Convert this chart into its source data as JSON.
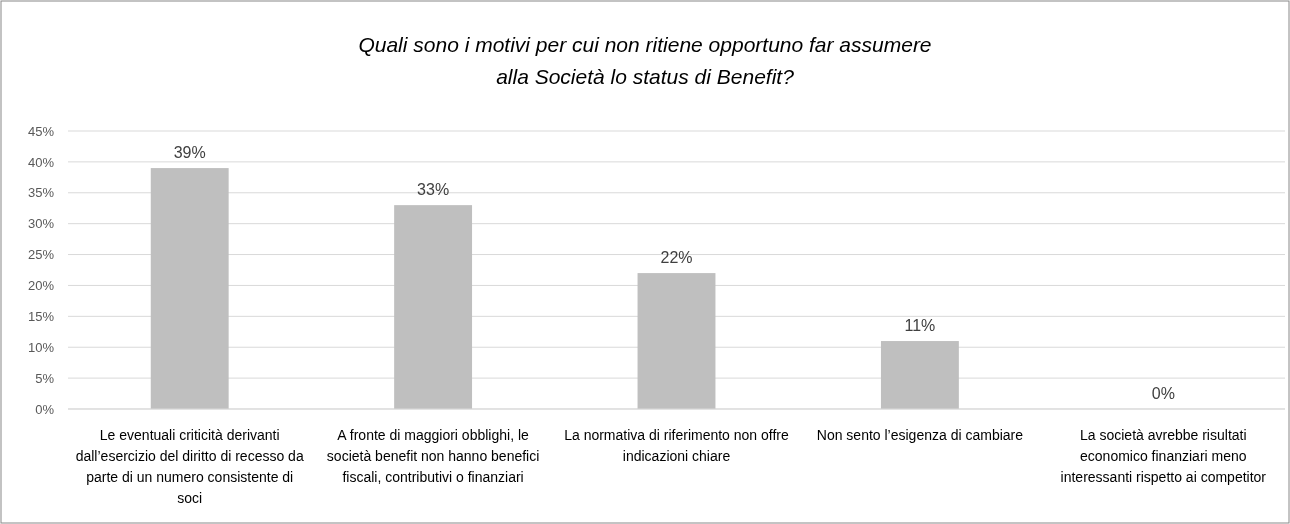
{
  "chart_data": {
    "type": "bar",
    "title": "Quali sono i motivi per cui non ritiene opportuno far assumere alla Società lo status di Benefit?",
    "categories": [
      "Le eventuali criticità derivanti dall’esercizio del diritto di recesso da parte di un numero consistente di soci",
      "A fronte di maggiori obblighi, le società benefit non hanno benefici fiscali, contributivi o finanziari",
      "La normativa di riferimento non offre indicazioni chiare",
      "Non sento l’esigenza di cambiare",
      "La società avrebbe risultati economico finanziari meno interessanti rispetto ai competitor"
    ],
    "values": [
      39,
      33,
      22,
      11,
      0
    ],
    "value_labels": [
      "39%",
      "33%",
      "22%",
      "11%",
      "0%"
    ],
    "color": "#bfbfbf",
    "ylim": [
      0,
      45
    ],
    "yticks": [
      {
        "value": 0,
        "label": "0%"
      },
      {
        "value": 5,
        "label": "5%"
      },
      {
        "value": 10,
        "label": "10%"
      },
      {
        "value": 15,
        "label": "15%"
      },
      {
        "value": 20,
        "label": "20%"
      },
      {
        "value": 25,
        "label": "25%"
      },
      {
        "value": 30,
        "label": "30%"
      },
      {
        "value": 35,
        "label": "35%"
      },
      {
        "value": 40,
        "label": "40%"
      },
      {
        "value": 45,
        "label": "45%"
      }
    ],
    "grid": "y"
  }
}
